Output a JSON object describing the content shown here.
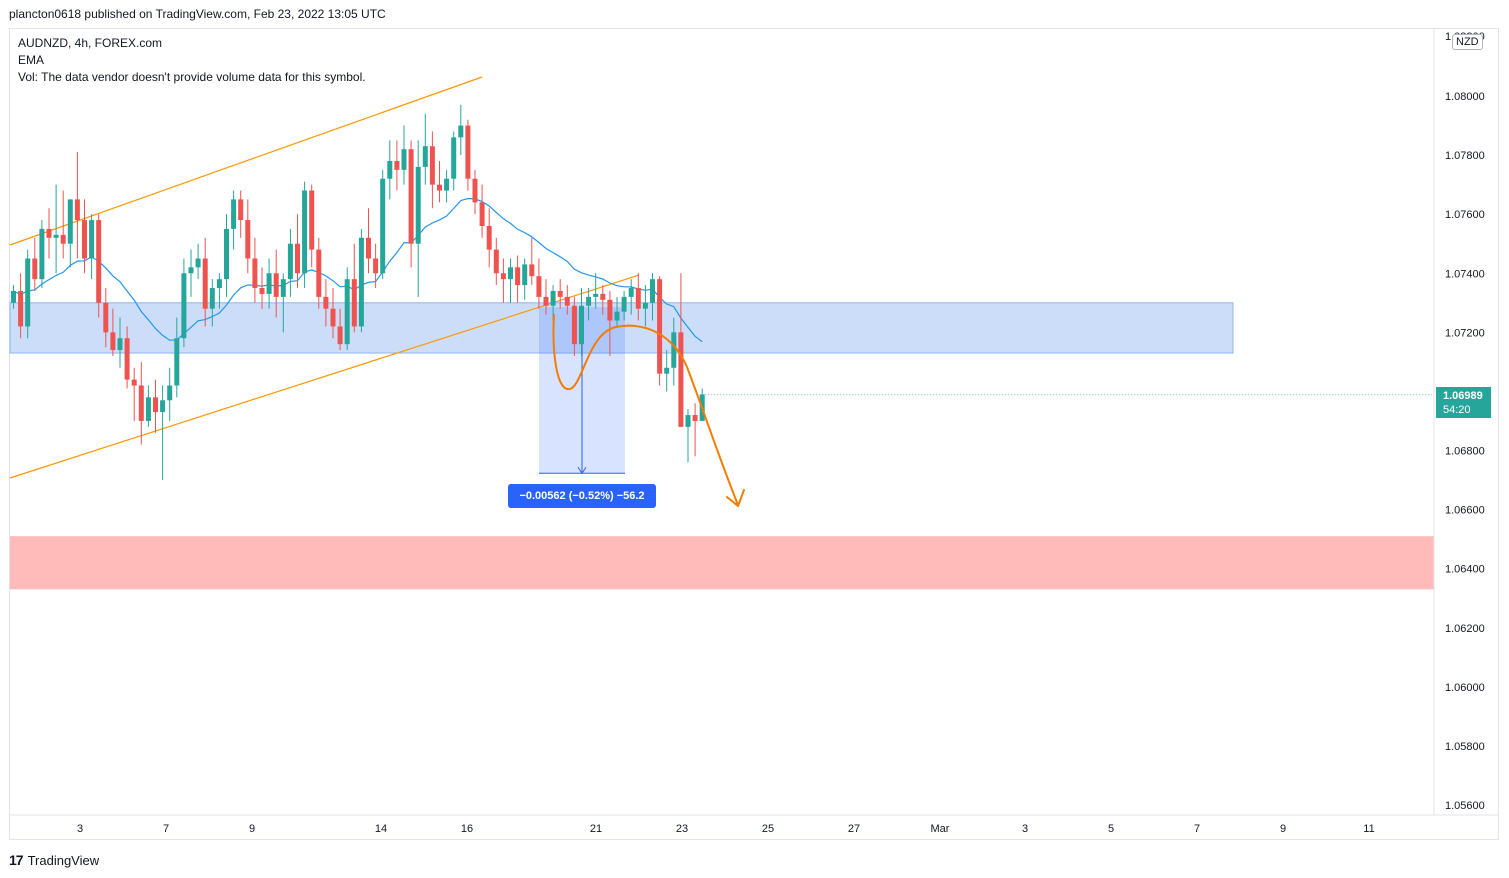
{
  "header": {
    "publish_line": "plancton0618 published on TradingView.com, Feb 23, 2022 13:05 UTC"
  },
  "legend": {
    "symbol_line": "AUDNZD, 4h, FOREX.com",
    "ema_label": "EMA",
    "vol_note": "Vol: The data vendor doesn't provide volume data for this symbol."
  },
  "currency_badge": "NZD",
  "price_tag": {
    "price": "1.06989",
    "countdown": "54:20",
    "color": "#26a69a"
  },
  "measure_label": "−0.00562 (−0.52%) −56.2",
  "footer": {
    "logo": "17",
    "brand": "TradingView"
  },
  "colors": {
    "up": "#26a69a",
    "down": "#ef5350",
    "ema": "#2196f3",
    "channel": "#ff9800",
    "zone_blue": "#bbd2f7",
    "zone_red": "#ffb3b3",
    "arrow_orange": "#f57c00",
    "measure_blue": "#2962ff"
  },
  "chart_data": {
    "type": "candlestick",
    "symbol": "AUDNZD",
    "timeframe": "4h",
    "y_axis": {
      "range": [
        1.0555,
        1.0815
      ],
      "ticks": [
        "1.05600",
        "1.05800",
        "1.06000",
        "1.06200",
        "1.06400",
        "1.06600",
        "1.06800",
        "1.07000",
        "1.07200",
        "1.07400",
        "1.07600",
        "1.07800",
        "1.08000"
      ],
      "current_price": 1.06989
    },
    "x_axis": {
      "ticks": [
        "3",
        "7",
        "9",
        "14",
        "16",
        "21",
        "23",
        "25",
        "27",
        "Mar",
        "3",
        "5",
        "7",
        "9",
        "11"
      ]
    },
    "zones": [
      {
        "name": "resistance-zone",
        "low": 1.0713,
        "high": 1.073
      },
      {
        "name": "support-zone",
        "low": 1.0633,
        "high": 1.0651
      }
    ],
    "measure": {
      "from": 1.07285,
      "to": 1.06723,
      "change": -0.00562,
      "percent": -0.52,
      "pips": -56.2
    },
    "candles": [
      {
        "o": 1.073,
        "h": 1.0736,
        "l": 1.0728,
        "c": 1.0734
      },
      {
        "o": 1.0734,
        "h": 1.074,
        "l": 1.0718,
        "c": 1.0722
      },
      {
        "o": 1.0722,
        "h": 1.0748,
        "l": 1.0718,
        "c": 1.0745
      },
      {
        "o": 1.0745,
        "h": 1.0752,
        "l": 1.0734,
        "c": 1.0738
      },
      {
        "o": 1.0738,
        "h": 1.0758,
        "l": 1.0735,
        "c": 1.0755
      },
      {
        "o": 1.0755,
        "h": 1.0762,
        "l": 1.0745,
        "c": 1.0752
      },
      {
        "o": 1.0752,
        "h": 1.077,
        "l": 1.074,
        "c": 1.0753
      },
      {
        "o": 1.0753,
        "h": 1.0768,
        "l": 1.0745,
        "c": 1.075
      },
      {
        "o": 1.075,
        "h": 1.0765,
        "l": 1.0742,
        "c": 1.0765
      },
      {
        "o": 1.0765,
        "h": 1.0781,
        "l": 1.0745,
        "c": 1.0758
      },
      {
        "o": 1.0758,
        "h": 1.0765,
        "l": 1.074,
        "c": 1.0745
      },
      {
        "o": 1.0745,
        "h": 1.076,
        "l": 1.0738,
        "c": 1.0758
      },
      {
        "o": 1.0758,
        "h": 1.076,
        "l": 1.0725,
        "c": 1.073
      },
      {
        "o": 1.073,
        "h": 1.0735,
        "l": 1.0715,
        "c": 1.072
      },
      {
        "o": 1.072,
        "h": 1.0728,
        "l": 1.0712,
        "c": 1.0714
      },
      {
        "o": 1.0714,
        "h": 1.0725,
        "l": 1.0708,
        "c": 1.0718
      },
      {
        "o": 1.0718,
        "h": 1.0722,
        "l": 1.0701,
        "c": 1.0704
      },
      {
        "o": 1.0704,
        "h": 1.0708,
        "l": 1.069,
        "c": 1.0702
      },
      {
        "o": 1.0702,
        "h": 1.071,
        "l": 1.0682,
        "c": 1.069
      },
      {
        "o": 1.069,
        "h": 1.0702,
        "l": 1.0688,
        "c": 1.0698
      },
      {
        "o": 1.0698,
        "h": 1.0704,
        "l": 1.0686,
        "c": 1.0693
      },
      {
        "o": 1.0693,
        "h": 1.0702,
        "l": 1.067,
        "c": 1.0697
      },
      {
        "o": 1.0697,
        "h": 1.0708,
        "l": 1.069,
        "c": 1.0702
      },
      {
        "o": 1.0702,
        "h": 1.0725,
        "l": 1.0698,
        "c": 1.0718
      },
      {
        "o": 1.0718,
        "h": 1.0745,
        "l": 1.0715,
        "c": 1.074
      },
      {
        "o": 1.074,
        "h": 1.0748,
        "l": 1.0732,
        "c": 1.0742
      },
      {
        "o": 1.0742,
        "h": 1.075,
        "l": 1.0738,
        "c": 1.0745
      },
      {
        "o": 1.0745,
        "h": 1.0752,
        "l": 1.0722,
        "c": 1.0728
      },
      {
        "o": 1.0728,
        "h": 1.0738,
        "l": 1.0722,
        "c": 1.0735
      },
      {
        "o": 1.0735,
        "h": 1.074,
        "l": 1.0728,
        "c": 1.0738
      },
      {
        "o": 1.0738,
        "h": 1.076,
        "l": 1.0732,
        "c": 1.0755
      },
      {
        "o": 1.0755,
        "h": 1.0768,
        "l": 1.0748,
        "c": 1.0765
      },
      {
        "o": 1.0765,
        "h": 1.0768,
        "l": 1.0752,
        "c": 1.0758
      },
      {
        "o": 1.0758,
        "h": 1.0765,
        "l": 1.074,
        "c": 1.0745
      },
      {
        "o": 1.0745,
        "h": 1.0752,
        "l": 1.073,
        "c": 1.0735
      },
      {
        "o": 1.0735,
        "h": 1.0742,
        "l": 1.0728,
        "c": 1.0733
      },
      {
        "o": 1.0733,
        "h": 1.0745,
        "l": 1.0728,
        "c": 1.074
      },
      {
        "o": 1.074,
        "h": 1.0748,
        "l": 1.0725,
        "c": 1.0732
      },
      {
        "o": 1.0732,
        "h": 1.074,
        "l": 1.072,
        "c": 1.0738
      },
      {
        "o": 1.0738,
        "h": 1.0755,
        "l": 1.0732,
        "c": 1.075
      },
      {
        "o": 1.075,
        "h": 1.076,
        "l": 1.0735,
        "c": 1.074
      },
      {
        "o": 1.074,
        "h": 1.0771,
        "l": 1.0735,
        "c": 1.0768
      },
      {
        "o": 1.0768,
        "h": 1.077,
        "l": 1.0742,
        "c": 1.0748
      },
      {
        "o": 1.0748,
        "h": 1.0752,
        "l": 1.0728,
        "c": 1.0732
      },
      {
        "o": 1.0732,
        "h": 1.0738,
        "l": 1.0722,
        "c": 1.0728
      },
      {
        "o": 1.0728,
        "h": 1.0735,
        "l": 1.0718,
        "c": 1.0722
      },
      {
        "o": 1.0722,
        "h": 1.0728,
        "l": 1.0714,
        "c": 1.0716
      },
      {
        "o": 1.0716,
        "h": 1.0742,
        "l": 1.0714,
        "c": 1.0738
      },
      {
        "o": 1.0738,
        "h": 1.075,
        "l": 1.072,
        "c": 1.0722
      },
      {
        "o": 1.0722,
        "h": 1.0755,
        "l": 1.072,
        "c": 1.0752
      },
      {
        "o": 1.0752,
        "h": 1.0762,
        "l": 1.074,
        "c": 1.0745
      },
      {
        "o": 1.0745,
        "h": 1.075,
        "l": 1.0735,
        "c": 1.074
      },
      {
        "o": 1.074,
        "h": 1.0775,
        "l": 1.0738,
        "c": 1.0772
      },
      {
        "o": 1.0772,
        "h": 1.0785,
        "l": 1.0765,
        "c": 1.0778
      },
      {
        "o": 1.0778,
        "h": 1.0785,
        "l": 1.0768,
        "c": 1.0775
      },
      {
        "o": 1.0775,
        "h": 1.079,
        "l": 1.077,
        "c": 1.0782
      },
      {
        "o": 1.0782,
        "h": 1.0785,
        "l": 1.0742,
        "c": 1.075
      },
      {
        "o": 1.075,
        "h": 1.0785,
        "l": 1.0732,
        "c": 1.0776
      },
      {
        "o": 1.0776,
        "h": 1.0794,
        "l": 1.077,
        "c": 1.0783
      },
      {
        "o": 1.0783,
        "h": 1.0788,
        "l": 1.0762,
        "c": 1.077
      },
      {
        "o": 1.077,
        "h": 1.0778,
        "l": 1.0764,
        "c": 1.0768
      },
      {
        "o": 1.0768,
        "h": 1.0775,
        "l": 1.0764,
        "c": 1.0772
      },
      {
        "o": 1.0772,
        "h": 1.0788,
        "l": 1.0768,
        "c": 1.0786
      },
      {
        "o": 1.0786,
        "h": 1.0797,
        "l": 1.078,
        "c": 1.079
      },
      {
        "o": 1.079,
        "h": 1.0792,
        "l": 1.0768,
        "c": 1.0772
      },
      {
        "o": 1.0772,
        "h": 1.0775,
        "l": 1.076,
        "c": 1.0764
      },
      {
        "o": 1.0764,
        "h": 1.077,
        "l": 1.0752,
        "c": 1.0756
      },
      {
        "o": 1.0756,
        "h": 1.0762,
        "l": 1.0742,
        "c": 1.0748
      },
      {
        "o": 1.0748,
        "h": 1.0752,
        "l": 1.0736,
        "c": 1.074
      },
      {
        "o": 1.074,
        "h": 1.0745,
        "l": 1.073,
        "c": 1.0738
      },
      {
        "o": 1.0738,
        "h": 1.0745,
        "l": 1.073,
        "c": 1.0742
      },
      {
        "o": 1.0742,
        "h": 1.0746,
        "l": 1.073,
        "c": 1.0736
      },
      {
        "o": 1.0736,
        "h": 1.0745,
        "l": 1.0731,
        "c": 1.0743
      },
      {
        "o": 1.0743,
        "h": 1.0752,
        "l": 1.0736,
        "c": 1.0739
      },
      {
        "o": 1.0739,
        "h": 1.0745,
        "l": 1.0728,
        "c": 1.0732
      },
      {
        "o": 1.0732,
        "h": 1.0738,
        "l": 1.0726,
        "c": 1.0729
      },
      {
        "o": 1.0729,
        "h": 1.0736,
        "l": 1.0724,
        "c": 1.0734
      },
      {
        "o": 1.0734,
        "h": 1.0738,
        "l": 1.0728,
        "c": 1.0732
      },
      {
        "o": 1.0732,
        "h": 1.0736,
        "l": 1.0726,
        "c": 1.0729
      },
      {
        "o": 1.0729,
        "h": 1.0732,
        "l": 1.0712,
        "c": 1.0716
      },
      {
        "o": 1.0716,
        "h": 1.0735,
        "l": 1.0712,
        "c": 1.0729
      },
      {
        "o": 1.0729,
        "h": 1.0735,
        "l": 1.0724,
        "c": 1.0732
      },
      {
        "o": 1.0732,
        "h": 1.074,
        "l": 1.0728,
        "c": 1.0733
      },
      {
        "o": 1.0733,
        "h": 1.0736,
        "l": 1.0726,
        "c": 1.0731
      },
      {
        "o": 1.0731,
        "h": 1.0734,
        "l": 1.0712,
        "c": 1.0724
      },
      {
        "o": 1.0724,
        "h": 1.0732,
        "l": 1.0722,
        "c": 1.0727
      },
      {
        "o": 1.0727,
        "h": 1.0734,
        "l": 1.0724,
        "c": 1.0732
      },
      {
        "o": 1.0732,
        "h": 1.0738,
        "l": 1.0726,
        "c": 1.0735
      },
      {
        "o": 1.0735,
        "h": 1.074,
        "l": 1.0724,
        "c": 1.0728
      },
      {
        "o": 1.0728,
        "h": 1.0736,
        "l": 1.0722,
        "c": 1.073
      },
      {
        "o": 1.073,
        "h": 1.074,
        "l": 1.0724,
        "c": 1.0738
      },
      {
        "o": 1.0738,
        "h": 1.0739,
        "l": 1.0702,
        "c": 1.0706
      },
      {
        "o": 1.0706,
        "h": 1.0714,
        "l": 1.07,
        "c": 1.0708
      },
      {
        "o": 1.0708,
        "h": 1.0725,
        "l": 1.0702,
        "c": 1.072
      },
      {
        "o": 1.072,
        "h": 1.074,
        "l": 1.0688,
        "c": 1.0688
      },
      {
        "o": 1.0688,
        "h": 1.0694,
        "l": 1.0676,
        "c": 1.0692
      },
      {
        "o": 1.0692,
        "h": 1.0696,
        "l": 1.0678,
        "c": 1.069
      },
      {
        "o": 1.069,
        "h": 1.0701,
        "l": 1.069,
        "c": 1.0699
      }
    ]
  }
}
